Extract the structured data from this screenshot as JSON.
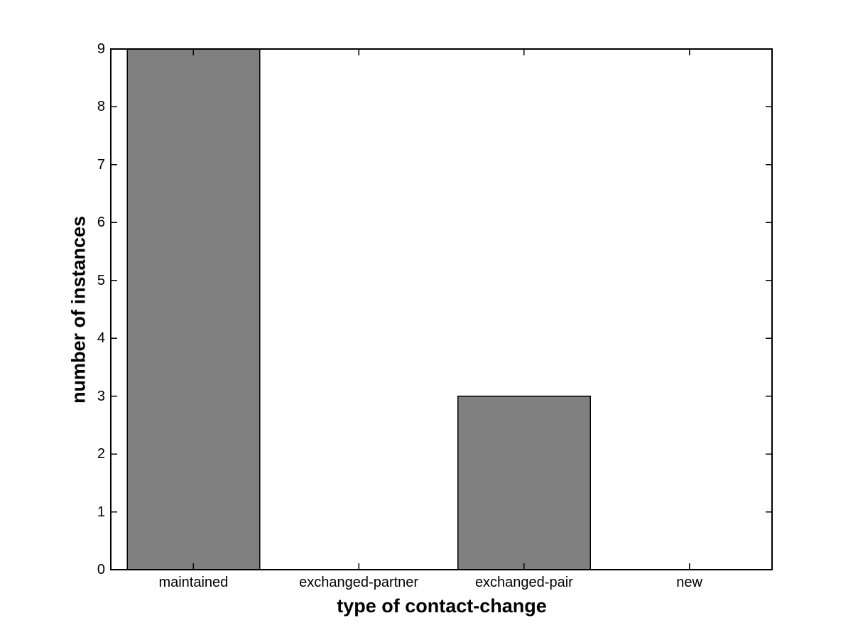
{
  "chart_data": {
    "type": "bar",
    "title": "",
    "xlabel": "type of contact-change",
    "ylabel": "number of instances",
    "categories": [
      "maintained",
      "exchanged-partner",
      "exchanged-pair",
      "new"
    ],
    "values": [
      9,
      0,
      3,
      0
    ],
    "yticks": [
      0,
      1,
      2,
      3,
      4,
      5,
      6,
      7,
      8,
      9
    ],
    "ylim": [
      0,
      9
    ],
    "grid": false,
    "legend": false,
    "bar_width_fraction": 0.8,
    "bar_color": "#808080",
    "bar_edge_color": "#000000",
    "axis_color": "#000000",
    "text_color": "#000000",
    "background_color": "#ffffff"
  }
}
